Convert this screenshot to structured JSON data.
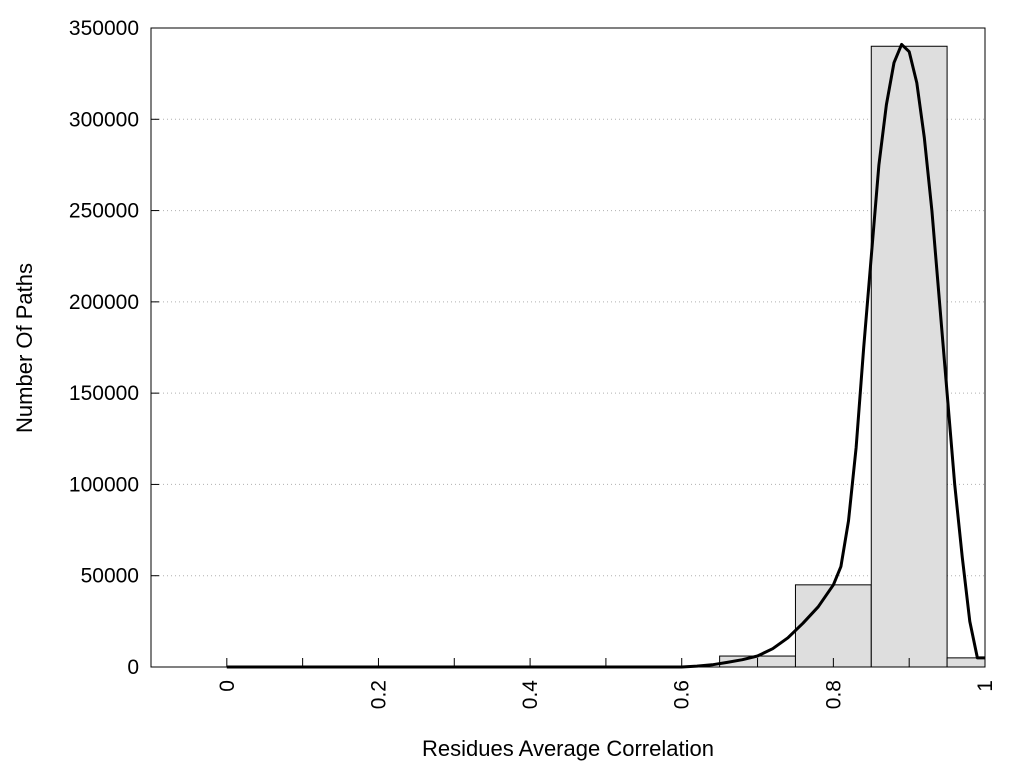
{
  "chart_data": {
    "type": "bar",
    "title": "",
    "xlabel": "Residues Average Correlation",
    "ylabel": "Number Of Paths",
    "xlim": [
      -0.1,
      1.0
    ],
    "ylim": [
      0,
      350000
    ],
    "grid": {
      "y": true,
      "x": false,
      "style": "dotted"
    },
    "x_ticks": [
      {
        "value": 0,
        "label": "0"
      },
      {
        "value": 0.2,
        "label": "0.2"
      },
      {
        "value": 0.4,
        "label": "0.4"
      },
      {
        "value": 0.6,
        "label": "0.6"
      },
      {
        "value": 0.8,
        "label": "0.8"
      },
      {
        "value": 1.0,
        "label": "1"
      }
    ],
    "x_minor_ticks": [
      0.1,
      0.3,
      0.5,
      0.7,
      0.9
    ],
    "y_ticks": [
      {
        "value": 0,
        "label": "0"
      },
      {
        "value": 50000,
        "label": "50000"
      },
      {
        "value": 100000,
        "label": "100000"
      },
      {
        "value": 150000,
        "label": "150000"
      },
      {
        "value": 200000,
        "label": "200000"
      },
      {
        "value": 250000,
        "label": "250000"
      },
      {
        "value": 300000,
        "label": "300000"
      },
      {
        "value": 350000,
        "label": "350000"
      }
    ],
    "bars": [
      {
        "x0": -0.05,
        "x1": 0.05,
        "value": 0
      },
      {
        "x0": 0.05,
        "x1": 0.15,
        "value": 0
      },
      {
        "x0": 0.15,
        "x1": 0.25,
        "value": 0
      },
      {
        "x0": 0.25,
        "x1": 0.35,
        "value": 0
      },
      {
        "x0": 0.35,
        "x1": 0.45,
        "value": 0
      },
      {
        "x0": 0.45,
        "x1": 0.55,
        "value": 0
      },
      {
        "x0": 0.55,
        "x1": 0.65,
        "value": 0
      },
      {
        "x0": 0.65,
        "x1": 0.75,
        "value": 6000
      },
      {
        "x0": 0.75,
        "x1": 0.85,
        "value": 45000
      },
      {
        "x0": 0.85,
        "x1": 0.95,
        "value": 340000
      },
      {
        "x0": 0.95,
        "x1": 1.0,
        "value": 5000
      }
    ],
    "fit_curve": {
      "x": [
        0.0,
        0.5,
        0.6,
        0.62,
        0.64,
        0.66,
        0.68,
        0.7,
        0.72,
        0.74,
        0.76,
        0.78,
        0.8,
        0.81,
        0.82,
        0.83,
        0.84,
        0.85,
        0.86,
        0.87,
        0.88,
        0.89,
        0.9,
        0.91,
        0.92,
        0.93,
        0.94,
        0.95,
        0.96,
        0.97,
        0.98,
        0.99,
        1.0
      ],
      "y": [
        0,
        0,
        0,
        500,
        1200,
        2500,
        4000,
        6000,
        10000,
        16000,
        24000,
        33000,
        45000,
        55000,
        80000,
        120000,
        175000,
        225000,
        275000,
        308000,
        331000,
        341000,
        337000,
        320000,
        290000,
        250000,
        200000,
        150000,
        100000,
        60000,
        25000,
        5000,
        5000
      ]
    },
    "colors": {
      "bar_fill": "#dedede",
      "bar_stroke": "#000000",
      "curve": "#000000",
      "grid": "#b0b0b0"
    }
  }
}
